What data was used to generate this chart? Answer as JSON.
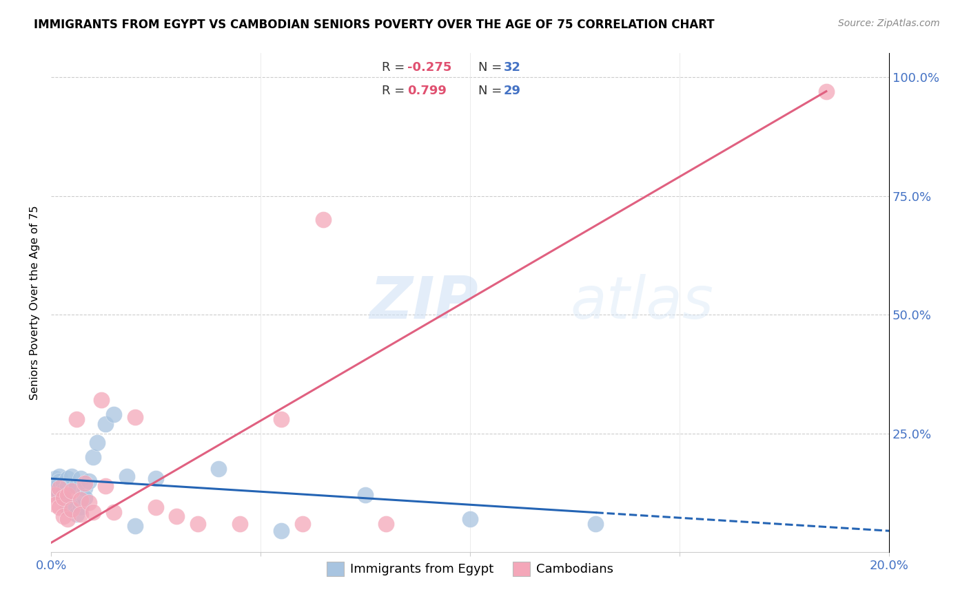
{
  "title": "IMMIGRANTS FROM EGYPT VS CAMBODIAN SENIORS POVERTY OVER THE AGE OF 75 CORRELATION CHART",
  "source": "Source: ZipAtlas.com",
  "ylabel": "Seniors Poverty Over the Age of 75",
  "xlim": [
    0.0,
    0.2
  ],
  "ylim": [
    0.0,
    1.05
  ],
  "watermark": "ZIPatlas",
  "blue_color": "#a8c4e0",
  "pink_color": "#f4a7b9",
  "blue_line_color": "#2464b4",
  "pink_line_color": "#e06080",
  "egypt_x": [
    0.001,
    0.001,
    0.001,
    0.002,
    0.002,
    0.002,
    0.003,
    0.003,
    0.004,
    0.004,
    0.004,
    0.005,
    0.005,
    0.006,
    0.006,
    0.007,
    0.007,
    0.008,
    0.008,
    0.009,
    0.01,
    0.011,
    0.013,
    0.015,
    0.018,
    0.02,
    0.025,
    0.04,
    0.055,
    0.075,
    0.1,
    0.13
  ],
  "egypt_y": [
    0.155,
    0.145,
    0.135,
    0.16,
    0.15,
    0.12,
    0.145,
    0.13,
    0.155,
    0.095,
    0.14,
    0.16,
    0.1,
    0.14,
    0.08,
    0.155,
    0.095,
    0.135,
    0.115,
    0.15,
    0.2,
    0.23,
    0.27,
    0.29,
    0.16,
    0.055,
    0.155,
    0.175,
    0.045,
    0.12,
    0.07,
    0.06
  ],
  "cambodian_x": [
    0.001,
    0.001,
    0.002,
    0.002,
    0.003,
    0.003,
    0.004,
    0.004,
    0.005,
    0.005,
    0.006,
    0.007,
    0.007,
    0.008,
    0.009,
    0.01,
    0.012,
    0.013,
    0.015,
    0.02,
    0.025,
    0.03,
    0.035,
    0.045,
    0.055,
    0.06,
    0.065,
    0.08,
    0.185
  ],
  "cambodian_y": [
    0.12,
    0.1,
    0.135,
    0.095,
    0.115,
    0.075,
    0.12,
    0.07,
    0.13,
    0.09,
    0.28,
    0.11,
    0.08,
    0.145,
    0.105,
    0.085,
    0.32,
    0.14,
    0.085,
    0.285,
    0.095,
    0.075,
    0.06,
    0.06,
    0.28,
    0.06,
    0.7,
    0.06,
    0.97
  ],
  "egypt_line_x": [
    0.0,
    0.2
  ],
  "egypt_line_y": [
    0.155,
    0.045
  ],
  "cambodian_line_x": [
    0.0,
    0.185
  ],
  "cambodian_line_y": [
    0.02,
    0.97
  ]
}
